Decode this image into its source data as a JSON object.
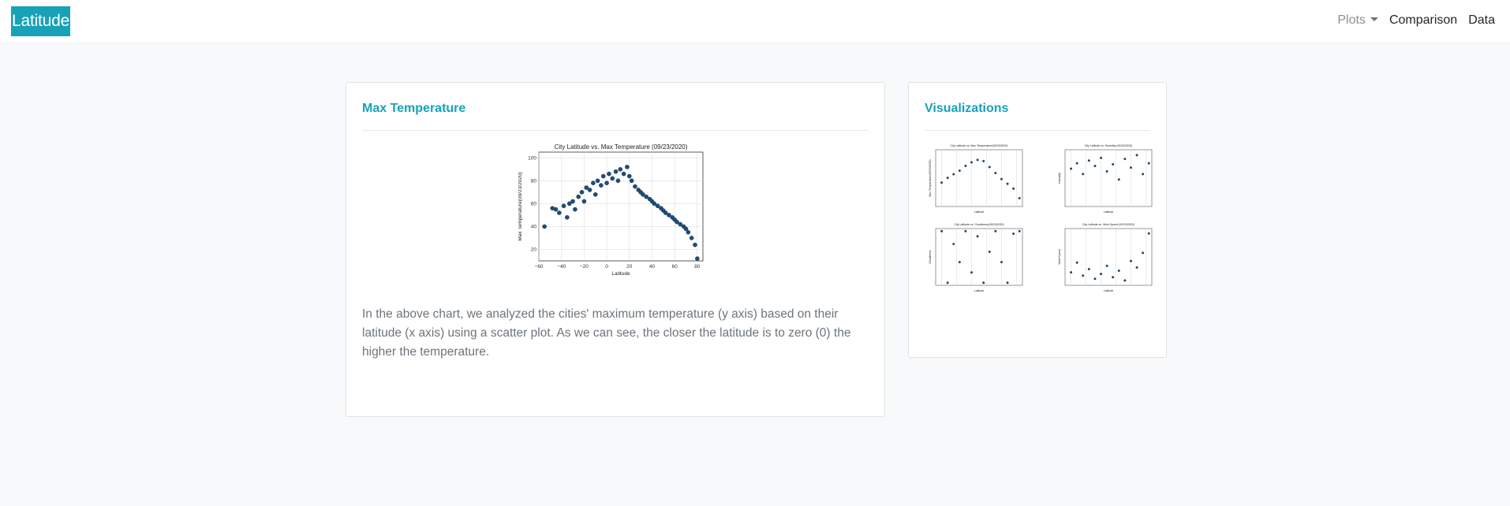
{
  "navbar": {
    "brand": "Latitude",
    "links": [
      {
        "label": "Plots",
        "dropdown": true
      },
      {
        "label": "Comparison"
      },
      {
        "label": "Data"
      }
    ]
  },
  "main_card": {
    "title": "Max Temperature",
    "description": "In the above chart, we analyzed the cities' maximum temperature (y axis) based on their latitude (x axis) using a scatter plot. As we can see, the closer the latitude is to zero (0) the higher the temperature."
  },
  "side_card": {
    "title": "Visualizations"
  },
  "chart_data": [
    {
      "type": "scatter",
      "title": "City Latitude vs. Max Temperature (09/23/2020)",
      "xlabel": "Latitude",
      "ylabel": "Max Temperature(09/23/2020)",
      "xlim": [
        -60,
        85
      ],
      "ylim": [
        10,
        105
      ],
      "xticks": [
        -60,
        -40,
        -20,
        0,
        20,
        40,
        60,
        80
      ],
      "yticks": [
        20,
        40,
        60,
        80,
        100
      ],
      "grid": true,
      "point_color": "#1f4e79",
      "x": [
        -55,
        -48,
        -45,
        -42,
        -38,
        -35,
        -33,
        -30,
        -28,
        -25,
        -22,
        -20,
        -18,
        -15,
        -12,
        -10,
        -8,
        -5,
        -3,
        0,
        2,
        5,
        8,
        10,
        12,
        15,
        18,
        20,
        22,
        25,
        28,
        30,
        32,
        35,
        38,
        40,
        42,
        45,
        48,
        50,
        52,
        55,
        58,
        60,
        62,
        65,
        68,
        70,
        72,
        75,
        78,
        80
      ],
      "y": [
        40,
        56,
        55,
        52,
        58,
        48,
        60,
        62,
        55,
        66,
        70,
        62,
        74,
        72,
        78,
        68,
        80,
        76,
        84,
        78,
        86,
        82,
        88,
        80,
        90,
        86,
        92,
        84,
        80,
        75,
        72,
        70,
        68,
        66,
        64,
        62,
        60,
        58,
        56,
        54,
        52,
        50,
        48,
        46,
        44,
        42,
        40,
        38,
        35,
        30,
        24,
        12
      ]
    },
    {
      "type": "scatter",
      "title": "City Latitude vs. Max Temperature(09/23/2020)",
      "xlabel": "Latitude",
      "ylabel": "Max Temperature(09/23/2020)",
      "x": [
        -50,
        -40,
        -30,
        -20,
        -10,
        0,
        10,
        20,
        30,
        40,
        50,
        60,
        70,
        80
      ],
      "y": [
        50,
        58,
        64,
        70,
        78,
        84,
        88,
        86,
        76,
        66,
        56,
        48,
        40,
        24
      ]
    },
    {
      "type": "scatter",
      "title": "City Latitude vs. Humidity (09/23/2020)",
      "xlabel": "Latitude",
      "ylabel": "Humidity",
      "x": [
        -50,
        -40,
        -30,
        -20,
        -10,
        0,
        10,
        20,
        30,
        40,
        50,
        60,
        70,
        80
      ],
      "y": [
        70,
        80,
        60,
        85,
        75,
        90,
        65,
        78,
        50,
        88,
        72,
        95,
        60,
        80
      ]
    },
    {
      "type": "scatter",
      "title": "City Latitude vs. Cloudiness(09/23/2020)",
      "xlabel": "Latitude",
      "ylabel": "Cloudiness",
      "x": [
        -50,
        -40,
        -30,
        -20,
        -10,
        0,
        10,
        20,
        30,
        40,
        50,
        60,
        70,
        80
      ],
      "y": [
        100,
        0,
        75,
        40,
        100,
        20,
        90,
        0,
        60,
        100,
        40,
        0,
        95,
        100
      ]
    },
    {
      "type": "scatter",
      "title": "City Latitude vs. Wind Speed (09/23/2020)",
      "xlabel": "Latitude",
      "ylabel": "Wind Speed",
      "x": [
        -50,
        -40,
        -30,
        -20,
        -10,
        0,
        10,
        20,
        30,
        40,
        50,
        60,
        70,
        80
      ],
      "y": [
        8,
        14,
        6,
        10,
        4,
        7,
        12,
        5,
        9,
        3,
        15,
        11,
        20,
        32
      ]
    }
  ]
}
